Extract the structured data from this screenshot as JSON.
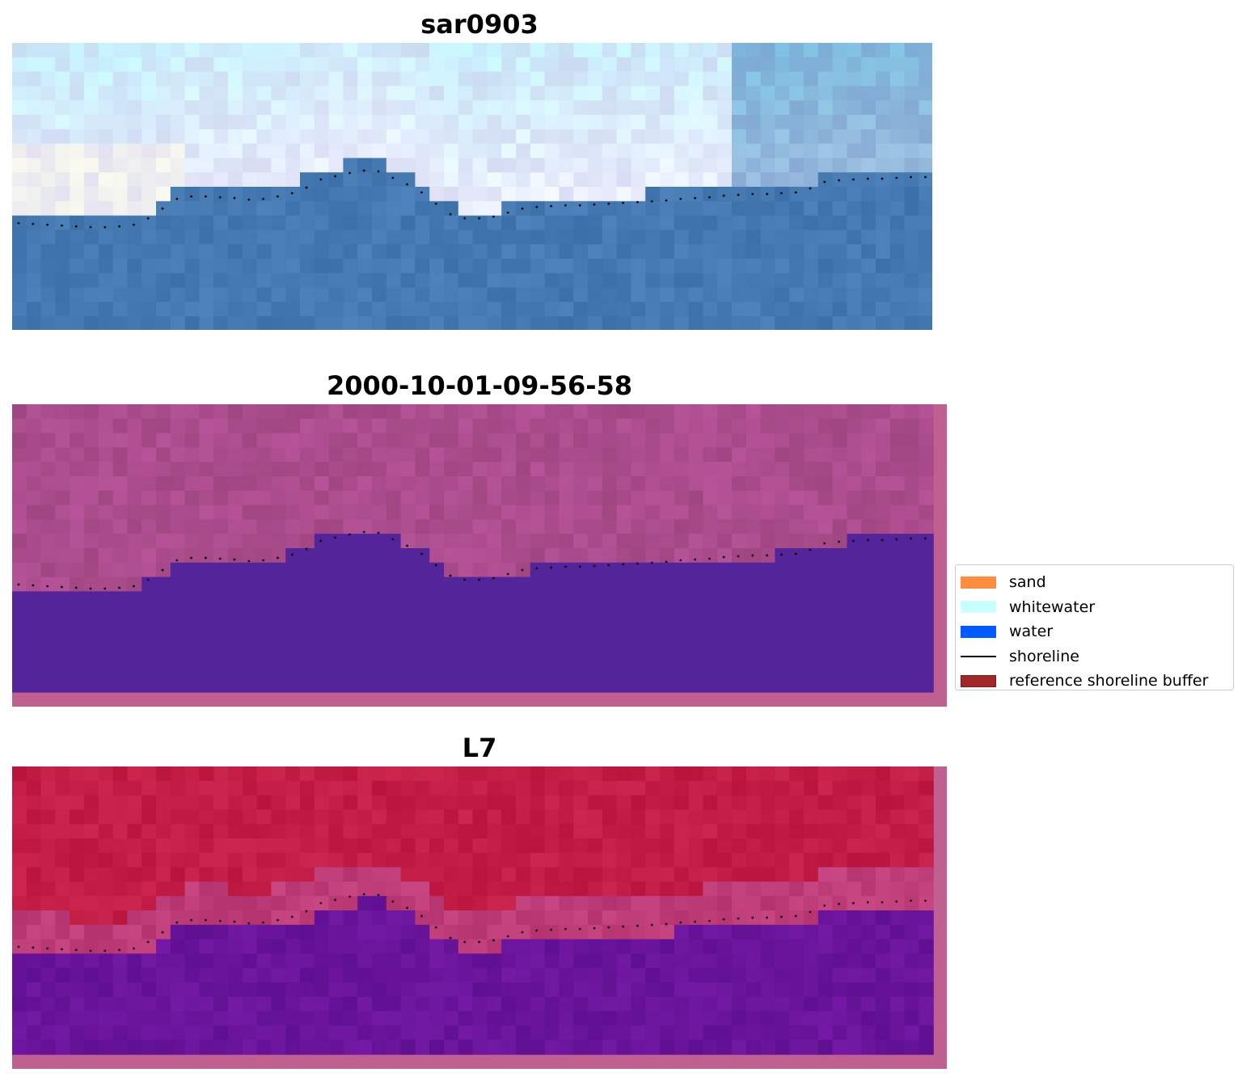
{
  "panels": [
    {
      "title": "sar0903",
      "style": "rgb"
    },
    {
      "title": "2000-10-01-09-56-58",
      "style": "classified"
    },
    {
      "title": "L7",
      "style": "index"
    }
  ],
  "legend": {
    "items": [
      {
        "label": "sand",
        "color": "#ff8c3f",
        "kind": "patch"
      },
      {
        "label": "whitewater",
        "color": "#c8ffff",
        "kind": "patch"
      },
      {
        "label": "water",
        "color": "#005aff",
        "kind": "patch"
      },
      {
        "label": "shoreline",
        "color": "#000000",
        "kind": "line"
      },
      {
        "label": "reference shoreline buffer",
        "color": "#a02828",
        "kind": "patch"
      }
    ]
  }
}
